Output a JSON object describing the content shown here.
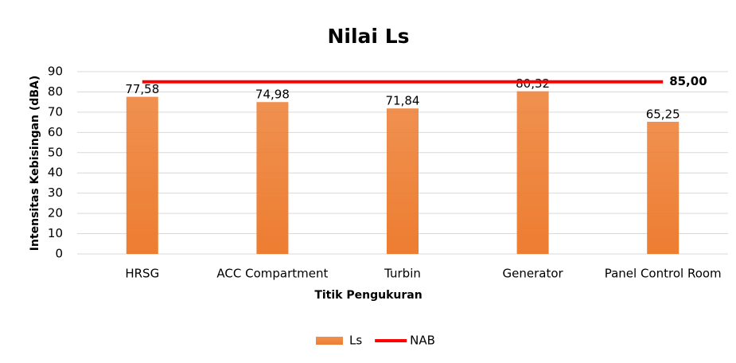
{
  "chart_data": {
    "type": "bar",
    "title": "Nilai Ls",
    "x_label": "Titik Pengukuran",
    "y_label": "Intensitas Kebisingan (dBA)",
    "categories": [
      "HRSG",
      "ACC Compartment",
      "Turbin",
      "Generator",
      "Panel Control Room"
    ],
    "series": [
      {
        "name": "Ls",
        "type": "bar",
        "color": "#ed7d31",
        "values": [
          77.58,
          74.98,
          71.84,
          80.32,
          65.25
        ],
        "value_labels": [
          "77,58",
          "74,98",
          "71,84",
          "80,32",
          "65,25"
        ]
      },
      {
        "name": "NAB",
        "type": "line",
        "color": "#ff0000",
        "values": [
          85,
          85,
          85,
          85,
          85
        ],
        "value_labels": [
          null,
          null,
          null,
          null,
          "85,00"
        ]
      }
    ],
    "ylim": [
      0,
      90
    ],
    "yticks": [
      0,
      10,
      20,
      30,
      40,
      50,
      60,
      70,
      80,
      90
    ],
    "grid": true,
    "legend": "bottom"
  }
}
